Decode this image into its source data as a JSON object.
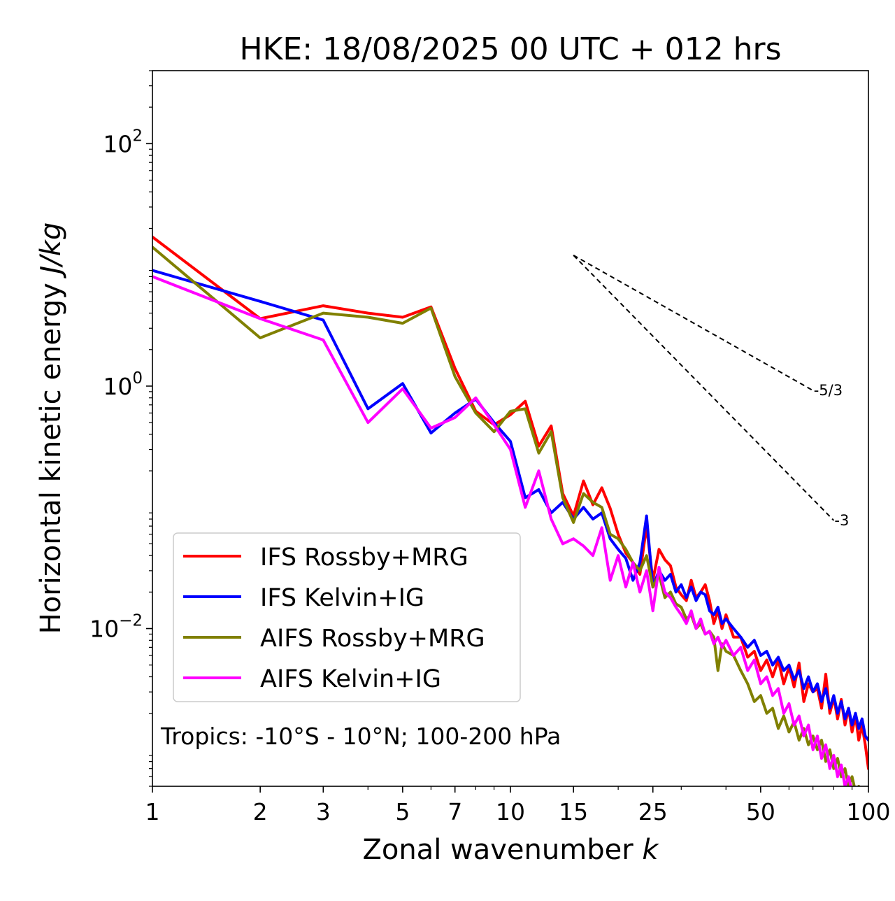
{
  "chart_data": {
    "type": "line",
    "title": "HKE: 18/08/2025 00 UTC + 012 hrs",
    "xlabel": "Zonal wavenumber k",
    "ylabel": "Horizontal kinetic energy J/kg",
    "xscale": "log",
    "yscale": "log",
    "xlim": [
      1,
      100
    ],
    "ylim": [
      0.0005,
      400
    ],
    "x_ticks": [
      1,
      2,
      3,
      5,
      7,
      10,
      15,
      25,
      50,
      100
    ],
    "x_tick_labels": [
      "1",
      "2",
      "3",
      "5",
      "7",
      "10",
      "15",
      "25",
      "50",
      "100"
    ],
    "y_ticks": [
      100,
      1,
      0.01
    ],
    "y_tick_labels": [
      {
        "base": "10",
        "exp": "2"
      },
      {
        "base": "10",
        "exp": "0"
      },
      {
        "base": "10",
        "exp": "−2"
      }
    ],
    "legend_position": "lower-left",
    "annotation": "Tropics: -10°S - 10°N; 100-200 hPa",
    "reference_lines": [
      {
        "label": "-5/3",
        "slope": -1.6667,
        "x": [
          15,
          70
        ],
        "y": [
          12,
          0.92
        ]
      },
      {
        "label": "-3",
        "slope": -3,
        "x": [
          15,
          80
        ],
        "y": [
          12,
          0.078
        ]
      }
    ],
    "series": [
      {
        "name": "IFS Rossby+MRG",
        "color": "#ff0000",
        "x": [
          1,
          2,
          3,
          4,
          5,
          6,
          7,
          8,
          9,
          10,
          11,
          12,
          13,
          14,
          15,
          16,
          17,
          18,
          19,
          20,
          21,
          22,
          23,
          24,
          25,
          26,
          27,
          28,
          29,
          30,
          31,
          32,
          33,
          34,
          35,
          36,
          37,
          38,
          39,
          40,
          42,
          44,
          46,
          48,
          50,
          52,
          54,
          56,
          58,
          60,
          62,
          64,
          66,
          68,
          70,
          72,
          74,
          76,
          78,
          80,
          82,
          84,
          86,
          88,
          90,
          92,
          94,
          96,
          98,
          100
        ],
        "y": [
          17,
          3.6,
          4.6,
          4.0,
          3.7,
          4.5,
          1.4,
          0.62,
          0.48,
          0.58,
          0.75,
          0.32,
          0.47,
          0.13,
          0.085,
          0.165,
          0.105,
          0.145,
          0.098,
          0.06,
          0.042,
          0.035,
          0.028,
          0.07,
          0.025,
          0.045,
          0.037,
          0.033,
          0.022,
          0.019,
          0.017,
          0.025,
          0.018,
          0.02,
          0.023,
          0.017,
          0.011,
          0.014,
          0.01,
          0.013,
          0.0085,
          0.0085,
          0.0058,
          0.0065,
          0.0045,
          0.0055,
          0.004,
          0.0055,
          0.0035,
          0.0048,
          0.0033,
          0.0052,
          0.0025,
          0.0035,
          0.003,
          0.0032,
          0.0022,
          0.0042,
          0.002,
          0.0027,
          0.0018,
          0.0026,
          0.0016,
          0.0022,
          0.0014,
          0.0019,
          0.0012,
          0.0016,
          0.0011,
          0.0007
        ]
      },
      {
        "name": "IFS Kelvin+IG",
        "color": "#0000ff",
        "x": [
          1,
          2,
          3,
          4,
          5,
          6,
          7,
          8,
          9,
          10,
          11,
          12,
          13,
          14,
          15,
          16,
          17,
          18,
          19,
          20,
          21,
          22,
          23,
          24,
          25,
          26,
          27,
          28,
          29,
          30,
          31,
          32,
          33,
          34,
          35,
          36,
          37,
          38,
          39,
          40,
          42,
          44,
          46,
          48,
          50,
          52,
          54,
          56,
          58,
          60,
          62,
          64,
          66,
          68,
          70,
          72,
          74,
          76,
          78,
          80,
          82,
          84,
          86,
          88,
          90,
          92,
          94,
          96,
          98,
          100
        ],
        "y": [
          9,
          5,
          3.5,
          0.65,
          1.05,
          0.41,
          0.6,
          0.78,
          0.5,
          0.35,
          0.12,
          0.14,
          0.09,
          0.11,
          0.08,
          0.1,
          0.08,
          0.09,
          0.055,
          0.045,
          0.038,
          0.025,
          0.035,
          0.085,
          0.022,
          0.03,
          0.025,
          0.028,
          0.02,
          0.023,
          0.018,
          0.022,
          0.017,
          0.02,
          0.019,
          0.014,
          0.013,
          0.015,
          0.011,
          0.012,
          0.01,
          0.0085,
          0.007,
          0.008,
          0.006,
          0.0065,
          0.005,
          0.0058,
          0.0045,
          0.005,
          0.0038,
          0.0045,
          0.0032,
          0.004,
          0.003,
          0.0035,
          0.0025,
          0.0032,
          0.0022,
          0.0028,
          0.002,
          0.0025,
          0.0018,
          0.0022,
          0.0016,
          0.002,
          0.0015,
          0.0018,
          0.0013,
          0.0012
        ]
      },
      {
        "name": "AIFS Rossby+MRG",
        "color": "#808000",
        "x": [
          1,
          2,
          3,
          4,
          5,
          6,
          7,
          8,
          9,
          10,
          11,
          12,
          13,
          14,
          15,
          16,
          17,
          18,
          19,
          20,
          21,
          22,
          23,
          24,
          25,
          26,
          27,
          28,
          29,
          30,
          31,
          32,
          33,
          34,
          35,
          36,
          37,
          38,
          39,
          40,
          42,
          44,
          46,
          48,
          50,
          52,
          54,
          56,
          58,
          60,
          62,
          64,
          66,
          68,
          70,
          72,
          74,
          76,
          78,
          80,
          82,
          84,
          86,
          88,
          90,
          92,
          94,
          96,
          98,
          100
        ],
        "y": [
          14,
          2.5,
          4.0,
          3.7,
          3.3,
          4.4,
          1.2,
          0.6,
          0.42,
          0.62,
          0.65,
          0.28,
          0.42,
          0.12,
          0.075,
          0.13,
          0.11,
          0.1,
          0.06,
          0.055,
          0.045,
          0.035,
          0.03,
          0.04,
          0.022,
          0.028,
          0.018,
          0.02,
          0.016,
          0.015,
          0.012,
          0.013,
          0.01,
          0.011,
          0.009,
          0.0095,
          0.0085,
          0.0045,
          0.0075,
          0.0065,
          0.006,
          0.0045,
          0.0035,
          0.0025,
          0.0028,
          0.002,
          0.0022,
          0.0015,
          0.0019,
          0.0014,
          0.0017,
          0.0012,
          0.0015,
          0.0011,
          0.0013,
          0.001,
          0.0012,
          0.0008,
          0.001,
          0.0007,
          0.00085,
          0.0006,
          0.0007,
          0.0005,
          0.0006,
          0.00045,
          0.0005,
          0.0004,
          0.00045,
          0.0004
        ]
      },
      {
        "name": "AIFS Kelvin+IG",
        "color": "#ff00ff",
        "x": [
          1,
          2,
          3,
          4,
          5,
          6,
          7,
          8,
          9,
          10,
          11,
          12,
          13,
          14,
          15,
          16,
          17,
          18,
          19,
          20,
          21,
          22,
          23,
          24,
          25,
          26,
          27,
          28,
          29,
          30,
          31,
          32,
          33,
          34,
          35,
          36,
          37,
          38,
          39,
          40,
          42,
          44,
          46,
          48,
          50,
          52,
          54,
          56,
          58,
          60,
          62,
          64,
          66,
          68,
          70,
          72,
          74,
          76,
          78,
          80,
          82,
          84,
          86,
          88,
          90
        ],
        "y": [
          8,
          3.6,
          2.4,
          0.5,
          0.95,
          0.45,
          0.55,
          0.8,
          0.48,
          0.3,
          0.1,
          0.2,
          0.08,
          0.05,
          0.055,
          0.048,
          0.04,
          0.068,
          0.025,
          0.04,
          0.022,
          0.035,
          0.02,
          0.03,
          0.014,
          0.032,
          0.02,
          0.018,
          0.015,
          0.013,
          0.011,
          0.014,
          0.01,
          0.012,
          0.009,
          0.0095,
          0.0075,
          0.0085,
          0.007,
          0.008,
          0.006,
          0.007,
          0.0045,
          0.0055,
          0.0035,
          0.004,
          0.0028,
          0.0032,
          0.002,
          0.0024,
          0.0016,
          0.0019,
          0.0013,
          0.0016,
          0.001,
          0.0013,
          0.00085,
          0.0011,
          0.0007,
          0.0009,
          0.0006,
          0.00075,
          0.0005,
          0.0006,
          0.00045
        ]
      }
    ]
  }
}
